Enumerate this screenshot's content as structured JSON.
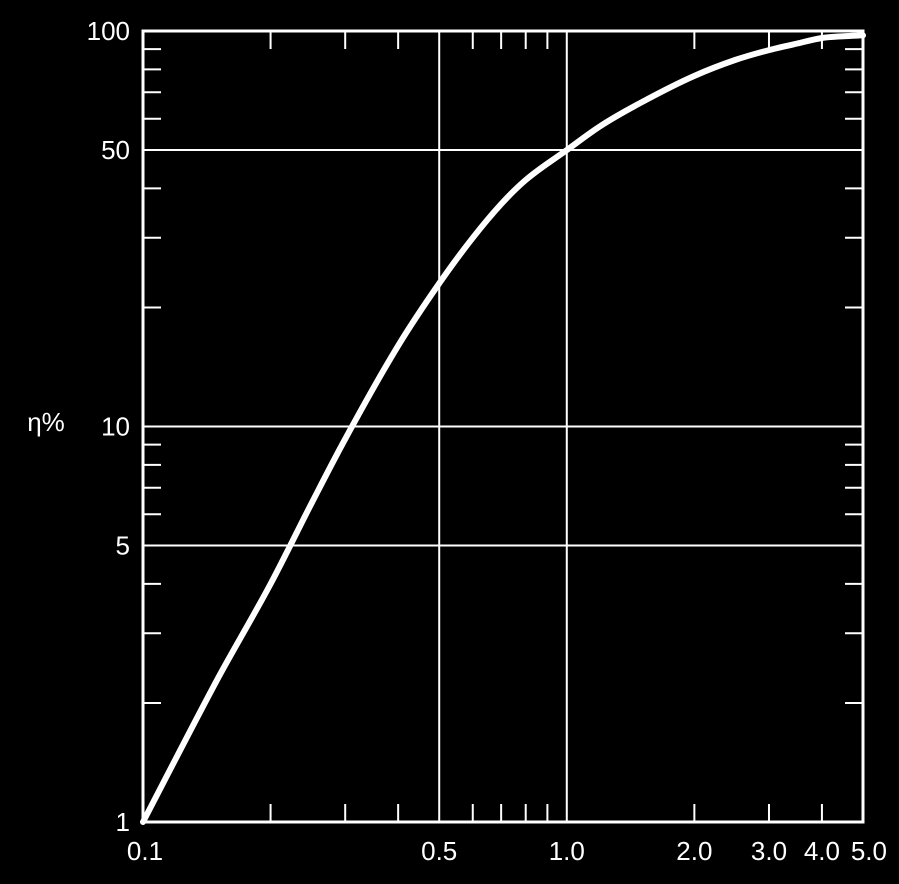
{
  "chart_data": {
    "type": "line",
    "title": "",
    "xlabel": "",
    "ylabel": "η%",
    "x_scale": "log",
    "y_scale": "log",
    "xlim": [
      0.1,
      5.0
    ],
    "ylim": [
      1,
      100
    ],
    "x_ticks": [
      {
        "value": 0.1,
        "label": "0.1"
      },
      {
        "value": 0.5,
        "label": "0.5"
      },
      {
        "value": 1.0,
        "label": "1.0"
      },
      {
        "value": 2.0,
        "label": "2.0"
      },
      {
        "value": 3.0,
        "label": "3.0"
      },
      {
        "value": 4.0,
        "label": "4.0"
      },
      {
        "value": 5.0,
        "label": "5.0"
      }
    ],
    "y_ticks": [
      {
        "value": 1,
        "label": "1"
      },
      {
        "value": 5,
        "label": "5"
      },
      {
        "value": 10,
        "label": "10"
      },
      {
        "value": 50,
        "label": "50"
      },
      {
        "value": 100,
        "label": "100"
      }
    ],
    "x_gridlines": [
      0.5,
      1.0
    ],
    "y_gridlines": [
      5,
      10,
      50
    ],
    "x_minor_ticks": [
      0.2,
      0.3,
      0.4,
      0.6,
      0.7,
      0.8,
      0.9,
      2.0,
      3.0,
      4.0
    ],
    "y_minor_ticks": [
      2,
      3,
      4,
      6,
      7,
      8,
      9,
      20,
      30,
      40,
      60,
      70,
      80,
      90
    ],
    "grid": true,
    "colors": {
      "background": "#000000",
      "foreground": "#ffffff"
    },
    "series": [
      {
        "x": [
          0.1,
          0.15,
          0.2,
          0.25,
          0.3,
          0.4,
          0.5,
          0.6,
          0.7,
          0.8,
          1.0,
          1.2,
          1.5,
          2.0,
          2.5,
          3.0,
          3.5,
          4.0,
          4.5,
          5.0
        ],
        "y": [
          1,
          2.3,
          4.0,
          6.4,
          9.3,
          16,
          23,
          30,
          36.5,
          42,
          50,
          57.5,
          66,
          77,
          84.5,
          89.5,
          93,
          96,
          97,
          97.5
        ]
      }
    ]
  }
}
